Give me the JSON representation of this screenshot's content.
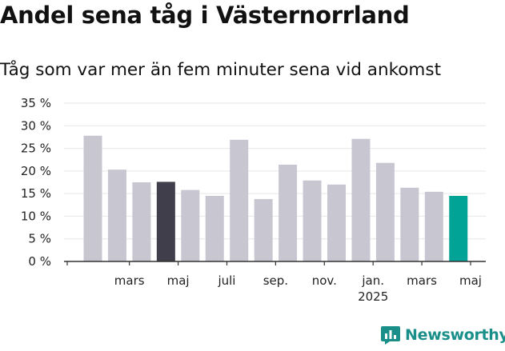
{
  "title": "Andel sena tåg i Västernorrland",
  "subtitle": "Tåg som var mer än fem minuter sena vid ankomst",
  "brand": "Newsworthy",
  "colors": {
    "bar_default": "#c8c6d1",
    "bar_highlight_dark": "#403e4b",
    "bar_highlight_teal": "#00a396",
    "grid": "#e6e6e6",
    "axis": "#333333",
    "brand": "#1a8f89"
  },
  "chart_data": {
    "type": "bar",
    "ylim": [
      0,
      35
    ],
    "yticks": [
      "0 %",
      "5 %",
      "10 %",
      "15 %",
      "20 %",
      "25 %",
      "30 %",
      "35 %"
    ],
    "ytick_values": [
      0,
      5,
      10,
      15,
      20,
      25,
      30,
      35
    ],
    "grid": true,
    "values": [
      27.8,
      20.3,
      17.5,
      17.6,
      15.8,
      14.5,
      26.9,
      13.8,
      21.4,
      17.9,
      17.0,
      27.1,
      21.8,
      16.3,
      15.4,
      14.5
    ],
    "highlight": {
      "3": "bar_highlight_dark",
      "15": "bar_highlight_teal"
    },
    "xtick_labels": [
      {
        "bar": 1.5,
        "label": "mars"
      },
      {
        "bar": 3.5,
        "label": "maj"
      },
      {
        "bar": 5.5,
        "label": "juli"
      },
      {
        "bar": 7.5,
        "label": "sep."
      },
      {
        "bar": 9.5,
        "label": "nov."
      },
      {
        "bar": 11.5,
        "label": "jan.",
        "sublabel": "2025"
      },
      {
        "bar": 13.5,
        "label": "mars"
      },
      {
        "bar": 15.5,
        "label": "maj"
      }
    ]
  }
}
